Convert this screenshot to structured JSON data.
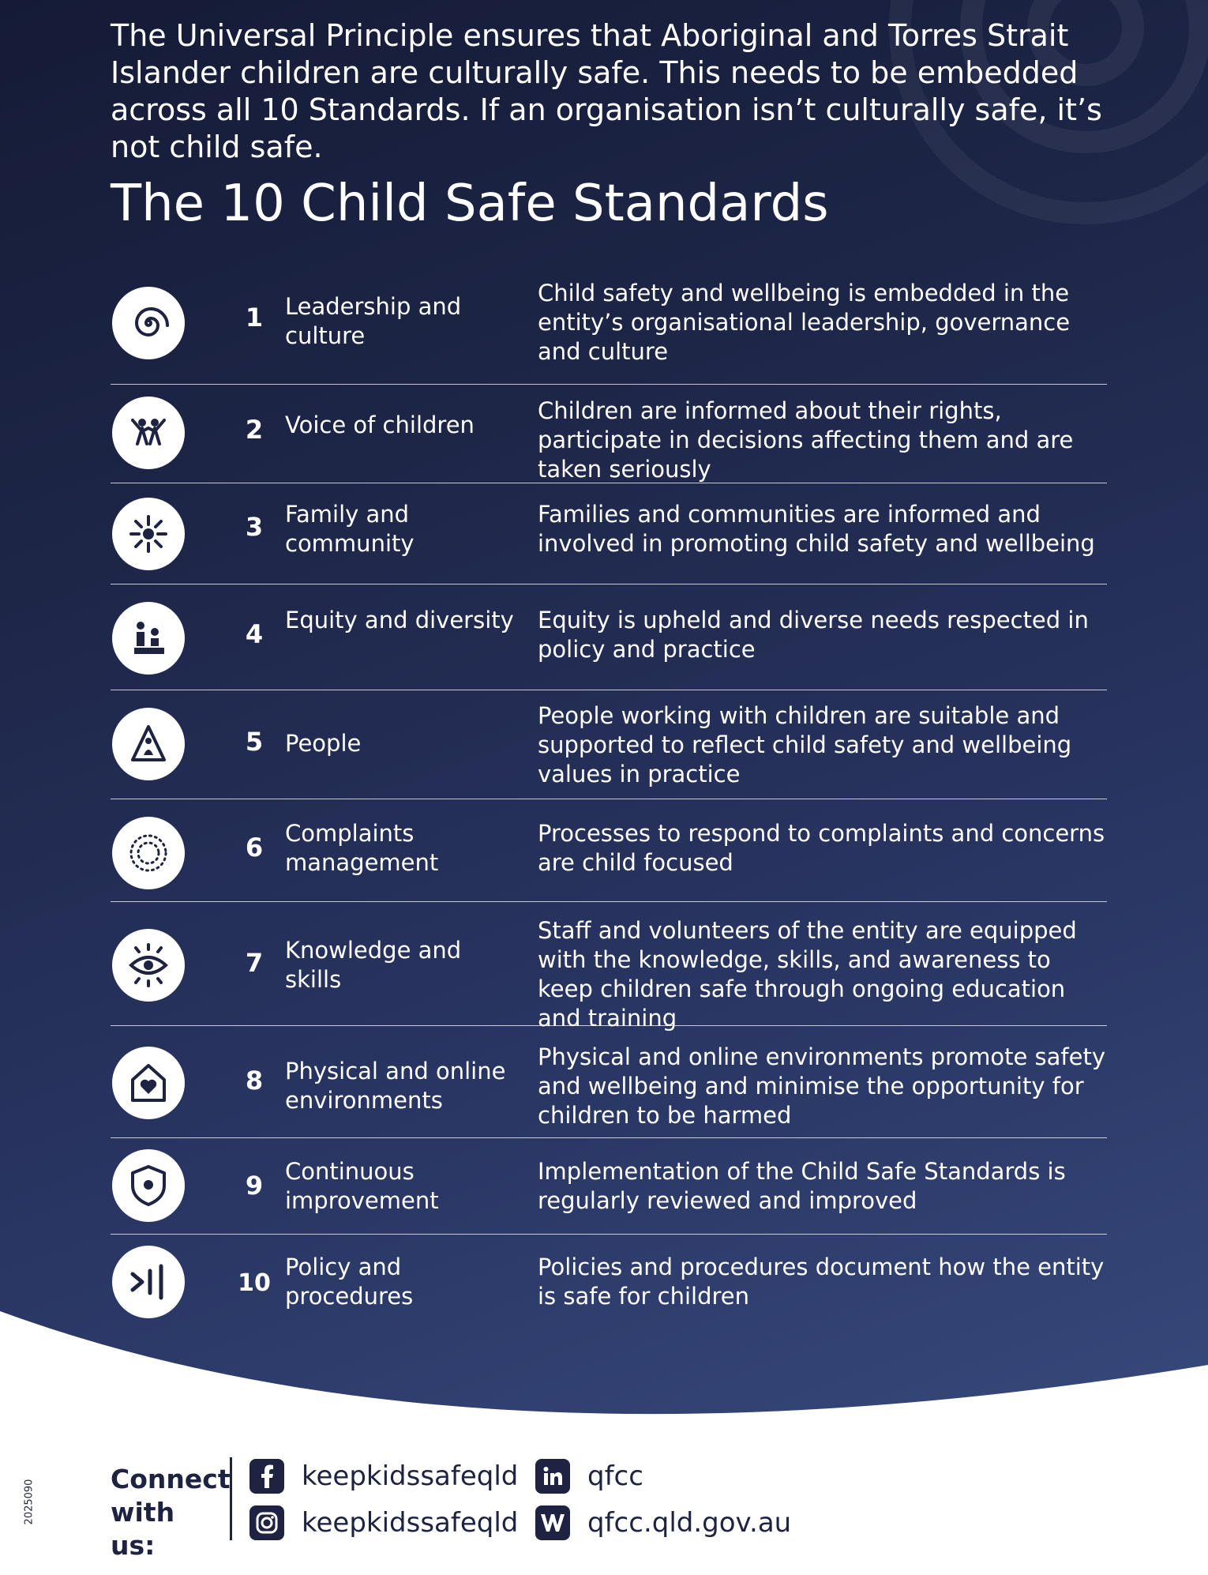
{
  "intro": "The Universal Principle ensures that Aboriginal and Torres Strait Islander children are culturally safe. This needs to be embedded across all 10 Standards. If an organisation isn’t culturally safe, it’s not child safe.",
  "title": "The 10 Child Safe Standards",
  "standards": [
    {
      "number": "1",
      "name": "Leadership and culture",
      "description": "Child safety and wellbeing is embedded in the entity’s organisational leadership, governance and culture",
      "icon": "spiral-icon"
    },
    {
      "number": "2",
      "name": "Voice of children",
      "description": "Children are informed about their rights, participate in decisions affecting them and are taken seriously",
      "icon": "children-icon"
    },
    {
      "number": "3",
      "name": "Family and community",
      "description": "Families and communities are informed and involved in promoting child safety and wellbeing",
      "icon": "community-icon"
    },
    {
      "number": "4",
      "name": "Equity and diversity",
      "description": "Equity is upheld and diverse needs respected in policy and practice",
      "icon": "equity-icon"
    },
    {
      "number": "5",
      "name": "People",
      "description": "People working with children are suitable and supported to reflect child safety and wellbeing values in practice",
      "icon": "person-arch-icon"
    },
    {
      "number": "6",
      "name": "Complaints management",
      "description": "Processes to respond to complaints and concerns are child focused",
      "icon": "dots-circle-icon"
    },
    {
      "number": "7",
      "name": "Knowledge and skills",
      "description": "Staff and volunteers of the entity are equipped with the knowledge, skills, and awareness to keep children safe through ongoing education and training",
      "icon": "eye-icon"
    },
    {
      "number": "8",
      "name": "Physical and online environments",
      "description": "Physical and online environments promote safety and wellbeing and minimise the opportunity for children to be harmed",
      "icon": "house-heart-icon"
    },
    {
      "number": "9",
      "name": "Continuous improvement",
      "description": "Implementation of the Child Safe Standards is regularly reviewed and improved",
      "icon": "shield-icon"
    },
    {
      "number": "10",
      "name": "Policy and procedures",
      "description": "Policies and procedures document how the entity is safe for children",
      "icon": "arrow-line-icon"
    }
  ],
  "footer": {
    "connect_label": "Connect with us:",
    "facebook": "keepkidssafeqld",
    "instagram": "keepkidssafeqld",
    "linkedin": "qfcc",
    "website": "qfcc.qld.gov.au",
    "doc_code": "2025090"
  },
  "colors": {
    "navy": "#1d2340",
    "background_dark": "#151b36",
    "background_light": "#3a4d80"
  }
}
